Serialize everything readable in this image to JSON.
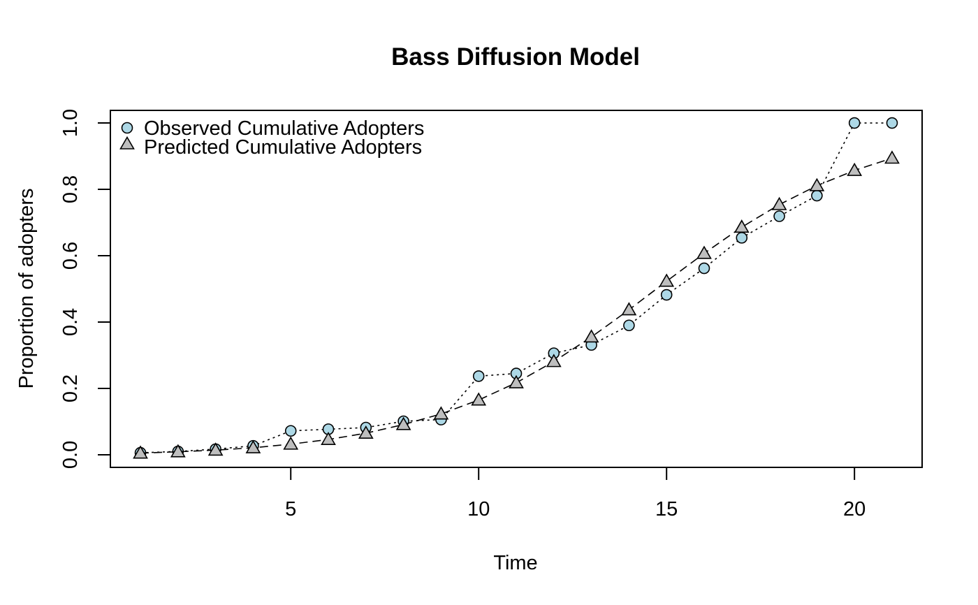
{
  "chart_data": {
    "type": "line",
    "title": "Bass Diffusion Model",
    "xlabel": "Time",
    "ylabel": "Proportion of adopters",
    "xlim": [
      0.2,
      21.8
    ],
    "ylim": [
      -0.038,
      1.038
    ],
    "x_ticks": [
      5,
      10,
      15,
      20
    ],
    "y_ticks": [
      0.0,
      0.2,
      0.4,
      0.6,
      0.8,
      1.0
    ],
    "x_tick_labels": [
      "5",
      "10",
      "15",
      "20"
    ],
    "y_tick_labels": [
      "0.0",
      "0.2",
      "0.4",
      "0.6",
      "0.8",
      "1.0"
    ],
    "grid": false,
    "legend_position": "top-left",
    "x": [
      1,
      2,
      3,
      4,
      5,
      6,
      7,
      8,
      9,
      10,
      11,
      12,
      13,
      14,
      15,
      16,
      17,
      18,
      19,
      20,
      21
    ],
    "series": [
      {
        "name": "Observed Cumulative Adopters",
        "marker": "circle",
        "line_style": "dotted",
        "fill_color": "#add8e6",
        "values": [
          0.006,
          0.01,
          0.017,
          0.027,
          0.072,
          0.077,
          0.082,
          0.101,
          0.106,
          0.237,
          0.245,
          0.306,
          0.331,
          0.39,
          0.482,
          0.562,
          0.654,
          0.719,
          0.781,
          1.0,
          1.0
        ]
      },
      {
        "name": "Predicted Cumulative Adopters",
        "marker": "triangle",
        "line_style": "dashed",
        "fill_color": "#bebebe",
        "values": [
          0.005,
          0.009,
          0.014,
          0.021,
          0.032,
          0.046,
          0.065,
          0.091,
          0.123,
          0.165,
          0.217,
          0.281,
          0.355,
          0.437,
          0.523,
          0.607,
          0.686,
          0.754,
          0.811,
          0.857,
          0.894
        ]
      }
    ]
  }
}
